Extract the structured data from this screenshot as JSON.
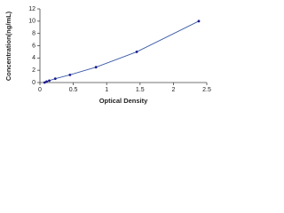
{
  "chart_data": {
    "type": "scatter",
    "x_label": "Optical Density",
    "y_label": "Concentration(ng/mL)",
    "x": [
      0.07,
      0.1,
      0.14,
      0.23,
      0.45,
      0.84,
      1.45,
      2.38
    ],
    "values": [
      0,
      0.16,
      0.31,
      0.63,
      1.25,
      2.5,
      5,
      10
    ],
    "color": "#1a1a8c",
    "line_color": "#3b5ba5",
    "line": true,
    "xlim": [
      0,
      2.5
    ],
    "xticks": [
      0,
      0.5,
      1,
      1.5,
      2,
      2.5
    ],
    "ylim": [
      0,
      12
    ],
    "yticks": [
      0,
      2,
      4,
      6,
      8,
      10,
      12
    ]
  }
}
